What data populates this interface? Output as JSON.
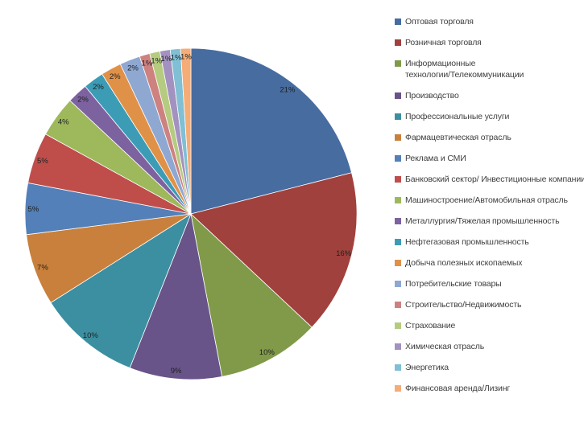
{
  "chart_data": {
    "type": "pie",
    "title": "",
    "legend_position": "right",
    "data_labels": "percent",
    "percent_label_suffix": "%",
    "start_angle_deg": 0,
    "direction": "clockwise",
    "slices": [
      {
        "label": "Оптовая торговля",
        "value": 21,
        "color": "#476CA0"
      },
      {
        "label": "Розничная торговля",
        "value": 16,
        "color": "#A0413D"
      },
      {
        "label": "Информационные технологии/Телекоммуникации",
        "value": 10,
        "color": "#809A49",
        "label_lines": [
          "Информационные",
          "технологии/Телекоммуникации"
        ]
      },
      {
        "label": "Производство",
        "value": 9,
        "color": "#685489"
      },
      {
        "label": "Профессиональные услуги",
        "value": 10,
        "color": "#3C8FA1"
      },
      {
        "label": "Фармацевтическая отрасль",
        "value": 7,
        "color": "#C8803C"
      },
      {
        "label": "Реклама и СМИ",
        "value": 5,
        "color": "#5380B8"
      },
      {
        "label": "Банковский сектор/ Инвестиционные компании",
        "value": 5,
        "color": "#BF4E4B"
      },
      {
        "label": "Машиностроение/Автомобильная отрасль",
        "value": 4,
        "color": "#9EB85C"
      },
      {
        "label": "Металлургия/Тяжелая промышленность",
        "value": 2,
        "color": "#7D62A0"
      },
      {
        "label": "Нефтегазовая промышленность",
        "value": 2,
        "color": "#3C9CB6"
      },
      {
        "label": "Добыча полезных ископаемых",
        "value": 2,
        "color": "#E09148"
      },
      {
        "label": "Потребительские товары",
        "value": 2,
        "color": "#8EA8D2"
      },
      {
        "label": "Строительство/Недвижимость",
        "value": 1,
        "color": "#CD8280"
      },
      {
        "label": "Страхование",
        "value": 1,
        "color": "#B5CB80"
      },
      {
        "label": "Химическая отрасль",
        "value": 1,
        "color": "#A392BF"
      },
      {
        "label": "Энергетика",
        "value": 1,
        "color": "#80BFD4"
      },
      {
        "label": "Финансовая аренда/Лизинг",
        "value": 1,
        "color": "#F5AC77"
      }
    ]
  }
}
